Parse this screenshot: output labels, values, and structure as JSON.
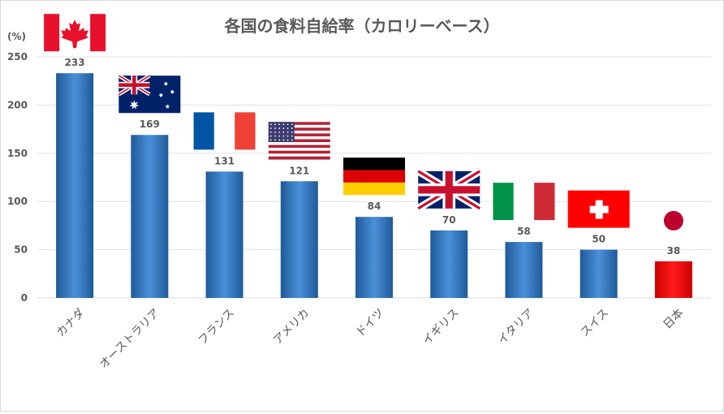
{
  "chart_data": {
    "type": "bar",
    "title": "各国の食料自給率（カロリーベース）",
    "unit_label": "(%)",
    "xlabel": "",
    "ylabel": "",
    "categories": [
      "カナダ",
      "オーストラリア",
      "フランス",
      "アメリカ",
      "ドイツ",
      "イギリス",
      "イタリア",
      "スイス",
      "日本"
    ],
    "values": [
      233,
      169,
      131,
      121,
      84,
      70,
      58,
      50,
      38
    ],
    "flags": [
      "canada-flag",
      "australia-flag",
      "france-flag",
      "usa-flag",
      "germany-flag",
      "uk-flag",
      "italy-flag",
      "switzerland-flag",
      "japan-flag"
    ],
    "ylim": [
      0,
      250
    ],
    "yticks": [
      0,
      50,
      100,
      150,
      200,
      250
    ],
    "grid": true,
    "legend": "none",
    "colors": {
      "bar": "#3a7fc7",
      "highlight_bar": "#ff0000",
      "title": "#595959",
      "axis_text": "#595959",
      "gridline": "#d9e4f0"
    },
    "highlight_category": "日本"
  }
}
